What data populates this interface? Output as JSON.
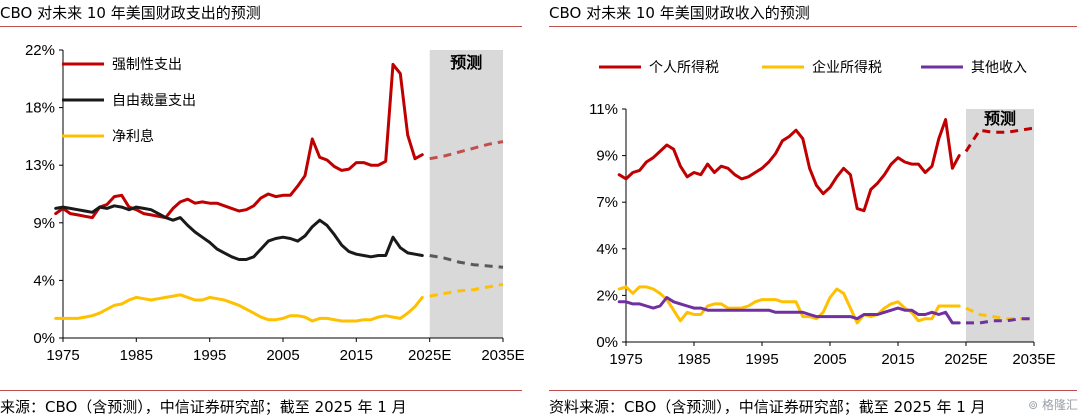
{
  "chart_data": [
    {
      "type": "line",
      "title": "CBO 对未来 10 年美国财政支出的预测",
      "source": "来源：CBO（含预测），中信证券研究部；截至 2025 年 1 月",
      "y_ticks": [
        "0%",
        "4%",
        "9%",
        "13%",
        "18%",
        "22%"
      ],
      "ylim": [
        0,
        22
      ],
      "x_ticks": [
        "1975",
        "1985",
        "1995",
        "2005",
        "2015",
        "2025E",
        "2035E"
      ],
      "xlim": [
        1975,
        2035
      ],
      "forecast_label": "预测",
      "forecast_start": 2025,
      "legend_position": "top-left",
      "grid": false,
      "series": [
        {
          "name": "强制性支出",
          "color": "#c00000",
          "forecast_color": "#c0504d",
          "x": [
            1974,
            1975,
            1976,
            1977,
            1978,
            1979,
            1980,
            1981,
            1982,
            1983,
            1984,
            1985,
            1986,
            1987,
            1988,
            1989,
            1990,
            1991,
            1992,
            1993,
            1994,
            1995,
            1996,
            1997,
            1998,
            1999,
            2000,
            2001,
            2002,
            2003,
            2004,
            2005,
            2006,
            2007,
            2008,
            2009,
            2010,
            2011,
            2012,
            2013,
            2014,
            2015,
            2016,
            2017,
            2018,
            2019,
            2020,
            2021,
            2022,
            2023,
            2024
          ],
          "y": [
            9.5,
            9.9,
            9.5,
            9.4,
            9.3,
            9.2,
            10.0,
            10.2,
            10.8,
            10.9,
            10.0,
            9.8,
            9.5,
            9.4,
            9.3,
            9.2,
            9.9,
            10.4,
            10.6,
            10.3,
            10.4,
            10.3,
            10.3,
            10.1,
            9.9,
            9.7,
            9.8,
            10.1,
            10.7,
            11.0,
            10.8,
            10.9,
            10.9,
            11.6,
            12.4,
            15.2,
            13.8,
            13.6,
            13.1,
            12.8,
            12.9,
            13.4,
            13.4,
            13.2,
            13.2,
            13.5,
            20.9,
            20.2,
            15.5,
            13.7,
            14.0
          ],
          "forecast_x": [
            2025,
            2027,
            2029,
            2031,
            2033,
            2035
          ],
          "forecast_y": [
            13.7,
            13.9,
            14.2,
            14.5,
            14.8,
            15.0
          ]
        },
        {
          "name": "自由裁量支出",
          "color": "#1a1a1a",
          "forecast_color": "#595959",
          "x": [
            1974,
            1975,
            1976,
            1977,
            1978,
            1979,
            1980,
            1981,
            1982,
            1983,
            1984,
            1985,
            1986,
            1987,
            1988,
            1989,
            1990,
            1991,
            1992,
            1993,
            1994,
            1995,
            1996,
            1997,
            1998,
            1999,
            2000,
            2001,
            2002,
            2003,
            2004,
            2005,
            2006,
            2007,
            2008,
            2009,
            2010,
            2011,
            2012,
            2013,
            2014,
            2015,
            2016,
            2017,
            2018,
            2019,
            2020,
            2021,
            2022,
            2023,
            2024
          ],
          "y": [
            9.9,
            10.0,
            9.9,
            9.8,
            9.7,
            9.6,
            10.0,
            9.9,
            10.1,
            10.0,
            9.8,
            10.0,
            9.9,
            9.8,
            9.5,
            9.2,
            9.0,
            9.2,
            8.6,
            8.1,
            7.7,
            7.3,
            6.8,
            6.5,
            6.2,
            6.0,
            6.0,
            6.2,
            6.8,
            7.4,
            7.6,
            7.7,
            7.6,
            7.4,
            7.8,
            8.5,
            9.0,
            8.6,
            7.9,
            7.1,
            6.6,
            6.4,
            6.3,
            6.2,
            6.3,
            6.3,
            7.7,
            6.9,
            6.5,
            6.4,
            6.3
          ],
          "forecast_x": [
            2025,
            2027,
            2029,
            2031,
            2033,
            2035
          ],
          "forecast_y": [
            6.3,
            6.1,
            5.8,
            5.6,
            5.5,
            5.4
          ]
        },
        {
          "name": "净利息",
          "color": "#ffc000",
          "forecast_color": "#ffc000",
          "x": [
            1974,
            1975,
            1976,
            1977,
            1978,
            1979,
            1980,
            1981,
            1982,
            1983,
            1984,
            1985,
            1986,
            1987,
            1988,
            1989,
            1990,
            1991,
            1992,
            1993,
            1994,
            1995,
            1996,
            1997,
            1998,
            1999,
            2000,
            2001,
            2002,
            2003,
            2004,
            2005,
            2006,
            2007,
            2008,
            2009,
            2010,
            2011,
            2012,
            2013,
            2014,
            2015,
            2016,
            2017,
            2018,
            2019,
            2020,
            2021,
            2022,
            2023,
            2024
          ],
          "y": [
            1.5,
            1.5,
            1.5,
            1.5,
            1.6,
            1.7,
            1.9,
            2.2,
            2.5,
            2.6,
            2.9,
            3.1,
            3.0,
            2.9,
            3.0,
            3.1,
            3.2,
            3.3,
            3.1,
            2.9,
            2.9,
            3.1,
            3.0,
            2.9,
            2.7,
            2.5,
            2.2,
            1.9,
            1.6,
            1.4,
            1.4,
            1.5,
            1.7,
            1.7,
            1.6,
            1.3,
            1.5,
            1.5,
            1.4,
            1.3,
            1.3,
            1.3,
            1.4,
            1.4,
            1.6,
            1.7,
            1.6,
            1.5,
            1.9,
            2.4,
            3.1
          ],
          "forecast_x": [
            2025,
            2027,
            2029,
            2031,
            2033,
            2035
          ],
          "forecast_y": [
            3.2,
            3.4,
            3.6,
            3.7,
            3.9,
            4.1
          ]
        }
      ]
    },
    {
      "type": "line",
      "title": "CBO 对未来 10 年美国财政收入的预测",
      "source": "资料来源：CBO（含预测），中信证券研究部；截至 2025 年 1 月",
      "y_ticks": [
        "0%",
        "2%",
        "4%",
        "7%",
        "9%",
        "11%"
      ],
      "ylim": [
        0,
        11
      ],
      "x_ticks": [
        "1975",
        "1985",
        "1995",
        "2005",
        "2015",
        "2025E",
        "2035E"
      ],
      "xlim": [
        1975,
        2035
      ],
      "forecast_label": "预测",
      "forecast_start": 2025,
      "legend_position": "top",
      "grid": false,
      "series": [
        {
          "name": "个人所得税",
          "color": "#c00000",
          "forecast_color": "#c00000",
          "x": [
            1974,
            1975,
            1976,
            1977,
            1978,
            1979,
            1980,
            1981,
            1982,
            1983,
            1984,
            1985,
            1986,
            1987,
            1988,
            1989,
            1990,
            1991,
            1992,
            1993,
            1994,
            1995,
            1996,
            1997,
            1998,
            1999,
            2000,
            2001,
            2002,
            2003,
            2004,
            2005,
            2006,
            2007,
            2008,
            2009,
            2010,
            2011,
            2012,
            2013,
            2014,
            2015,
            2016,
            2017,
            2018,
            2019,
            2020,
            2021,
            2022,
            2023,
            2024
          ],
          "y": [
            7.9,
            7.7,
            8.0,
            8.1,
            8.5,
            8.7,
            9.0,
            9.3,
            9.1,
            8.3,
            7.8,
            8.0,
            7.9,
            8.4,
            8.0,
            8.3,
            8.2,
            7.9,
            7.7,
            7.8,
            8.0,
            8.2,
            8.5,
            8.9,
            9.5,
            9.7,
            10.0,
            9.6,
            8.2,
            7.4,
            7.0,
            7.3,
            7.8,
            8.2,
            7.9,
            6.3,
            6.2,
            7.2,
            7.5,
            7.9,
            8.4,
            8.7,
            8.5,
            8.4,
            8.4,
            8.0,
            8.3,
            9.6,
            10.5,
            8.2,
            8.8
          ],
          "forecast_x": [
            2025,
            2026,
            2027,
            2029,
            2031,
            2033,
            2035
          ],
          "forecast_y": [
            9.0,
            9.5,
            10.0,
            9.9,
            9.9,
            10.0,
            10.1
          ]
        },
        {
          "name": "企业所得税",
          "color": "#ffc000",
          "forecast_color": "#ffc000",
          "x": [
            1974,
            1975,
            1976,
            1977,
            1978,
            1979,
            1980,
            1981,
            1982,
            1983,
            1984,
            1985,
            1986,
            1987,
            1988,
            1989,
            1990,
            1991,
            1992,
            1993,
            1994,
            1995,
            1996,
            1997,
            1998,
            1999,
            2000,
            2001,
            2002,
            2003,
            2004,
            2005,
            2006,
            2007,
            2008,
            2009,
            2010,
            2011,
            2012,
            2013,
            2014,
            2015,
            2016,
            2017,
            2018,
            2019,
            2020,
            2021,
            2022,
            2023,
            2024
          ],
          "y": [
            2.5,
            2.6,
            2.3,
            2.6,
            2.6,
            2.5,
            2.3,
            2.0,
            1.5,
            1.0,
            1.4,
            1.3,
            1.3,
            1.7,
            1.8,
            1.8,
            1.6,
            1.6,
            1.6,
            1.7,
            1.9,
            2.0,
            2.0,
            2.0,
            1.9,
            1.9,
            1.9,
            1.2,
            1.2,
            1.1,
            1.4,
            2.1,
            2.5,
            2.3,
            1.6,
            0.9,
            1.3,
            1.2,
            1.3,
            1.6,
            1.8,
            1.9,
            1.6,
            1.4,
            1.0,
            1.1,
            1.1,
            1.7,
            1.7,
            1.7,
            1.7
          ],
          "forecast_x": [
            2025,
            2027,
            2029,
            2031,
            2033,
            2035
          ],
          "forecast_y": [
            1.6,
            1.3,
            1.2,
            1.1,
            1.1,
            1.1
          ]
        },
        {
          "name": "其他收入",
          "color": "#7030a0",
          "forecast_color": "#7030a0",
          "x": [
            1974,
            1975,
            1976,
            1977,
            1978,
            1979,
            1980,
            1981,
            1982,
            1983,
            1984,
            1985,
            1986,
            1987,
            1988,
            1989,
            1990,
            1991,
            1992,
            1993,
            1994,
            1995,
            1996,
            1997,
            1998,
            1999,
            2000,
            2001,
            2002,
            2003,
            2004,
            2005,
            2006,
            2007,
            2008,
            2009,
            2010,
            2011,
            2012,
            2013,
            2014,
            2015,
            2016,
            2017,
            2018,
            2019,
            2020,
            2021,
            2022,
            2023,
            2024
          ],
          "y": [
            1.9,
            1.9,
            1.8,
            1.8,
            1.7,
            1.6,
            1.7,
            2.1,
            1.9,
            1.8,
            1.7,
            1.6,
            1.6,
            1.5,
            1.5,
            1.5,
            1.5,
            1.5,
            1.5,
            1.5,
            1.5,
            1.5,
            1.5,
            1.4,
            1.4,
            1.4,
            1.4,
            1.4,
            1.3,
            1.2,
            1.2,
            1.2,
            1.2,
            1.2,
            1.2,
            1.1,
            1.3,
            1.3,
            1.3,
            1.4,
            1.5,
            1.6,
            1.5,
            1.5,
            1.3,
            1.3,
            1.4,
            1.3,
            1.4,
            0.9,
            0.9
          ],
          "forecast_x": [
            2025,
            2027,
            2029,
            2031,
            2033,
            2035
          ],
          "forecast_y": [
            0.9,
            0.9,
            1.0,
            1.0,
            1.1,
            1.1
          ]
        }
      ]
    }
  ],
  "watermark": "格隆汇"
}
